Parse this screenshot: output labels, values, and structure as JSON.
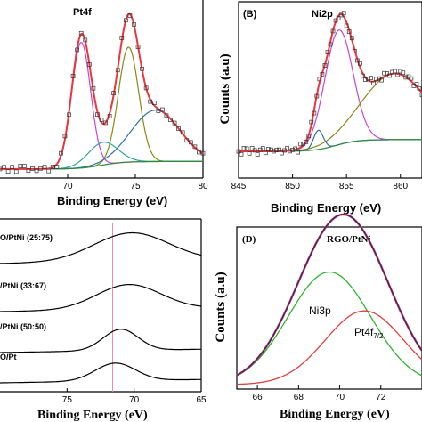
{
  "chart_data": [
    {
      "panel": "A",
      "type": "line",
      "title": "Pt4f",
      "xlabel": "Binding Energy (eV)",
      "ylabel": "",
      "xlim": [
        65,
        80
      ],
      "xticks": [
        "70",
        "75",
        "80"
      ],
      "colors": {
        "fit": "#e8373f",
        "peak1": "#cc44cc",
        "peak2": "#8a8a14",
        "peak3": "#2e6fb0",
        "peak4": "#2fa59a",
        "background": "#2a8a3a"
      },
      "peaks": [
        {
          "center": 71.0,
          "height": 0.83,
          "width": 0.7
        },
        {
          "center": 74.5,
          "height": 0.76,
          "width": 0.75
        },
        {
          "center": 76.5,
          "height": 0.34,
          "width": 1.8
        },
        {
          "center": 72.6,
          "height": 0.15,
          "width": 1.1
        }
      ]
    },
    {
      "panel": "B",
      "type": "line",
      "title": "Ni2p",
      "xlabel": "Binding Energy (eV)",
      "ylabel": "Counts (a.u)",
      "xlim": [
        845,
        862
      ],
      "xticks": [
        "845",
        "850",
        "855",
        "860"
      ],
      "colors": {
        "fit": "#e8373f",
        "peak1": "#cc44cc",
        "peak2": "#8a8a14",
        "peak3": "#2e6fb0",
        "background": "#2a8a3a"
      },
      "peaks": [
        {
          "center": 854.3,
          "height": 0.78,
          "width": 1.3
        },
        {
          "center": 859.5,
          "height": 0.45,
          "width": 3.0
        },
        {
          "center": 852.4,
          "height": 0.13,
          "width": 0.45
        }
      ]
    },
    {
      "panel": "C",
      "type": "line",
      "title": "",
      "xlabel": "Binding Energy (eV)",
      "ylabel": "",
      "xlim": [
        65,
        80
      ],
      "reversed_x": true,
      "xticks": [
        "75",
        "70",
        "65"
      ],
      "reference_line_x": 71.6,
      "series": [
        {
          "name": "O/PtNi (25:75)",
          "center": 70.2,
          "height": 32,
          "width": 2.8
        },
        {
          "name": "/PtNi (33:67)",
          "center": 70.4,
          "height": 28,
          "width": 2.4
        },
        {
          "name": "/PtNi (50:50)",
          "center": 71.0,
          "height": 24,
          "width": 1.3
        },
        {
          "name": "O/Pt",
          "center": 71.4,
          "height": 20,
          "width": 1.5
        }
      ]
    },
    {
      "panel": "D",
      "type": "line",
      "title": "RGO/PtNi",
      "xlabel": "Binding Energy (eV)",
      "ylabel": "Counts (a.u)",
      "xlim": [
        65,
        74
      ],
      "xticks": [
        "66",
        "68",
        "70",
        "72"
      ],
      "colors": {
        "envelope": "#1a2a8a",
        "fit": "#e8373f",
        "ni3p": "#2fb52f",
        "pt4f": "#e04040"
      },
      "peaks": [
        {
          "name": "Ni3p",
          "center": 69.5,
          "height": 0.55,
          "width": 2.0
        },
        {
          "name": "Pt4f7/2",
          "center": 71.2,
          "height": 0.36,
          "width": 1.9
        }
      ],
      "annotations": {
        "ni3p": "Ni3p",
        "pt4f": "Pt4f",
        "pt4f_sub": "7/2"
      }
    }
  ],
  "panel_labels": {
    "b": "(B)",
    "d": "(D)"
  }
}
